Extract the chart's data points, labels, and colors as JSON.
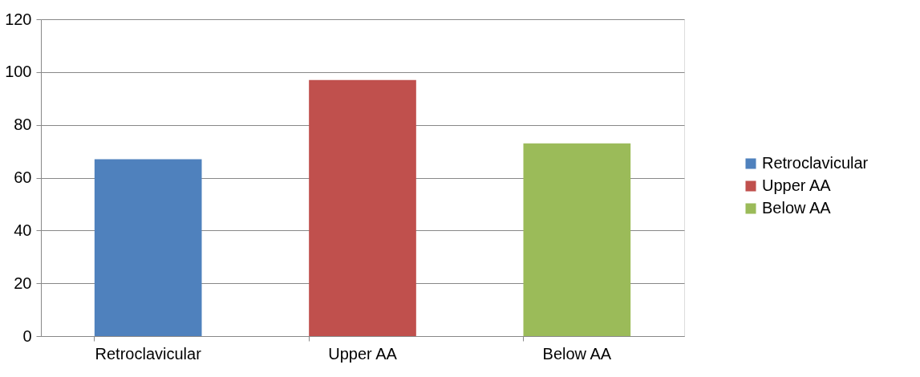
{
  "chart_data": {
    "type": "bar",
    "stacked": true,
    "categories": [
      "Retroclavicular",
      "Upper AA",
      "Below AA"
    ],
    "series": [
      {
        "name": "Retroclavicular",
        "color": "#4f81bd",
        "values": [
          67,
          null,
          null
        ]
      },
      {
        "name": "Upper AA",
        "color": "#c0504d",
        "values": [
          null,
          97,
          null
        ]
      },
      {
        "name": "Below AA",
        "color": "#9bbb59",
        "values": [
          null,
          null,
          73
        ]
      }
    ],
    "ylim": [
      0,
      120
    ],
    "yticks": [
      0,
      20,
      40,
      60,
      80,
      100,
      120
    ],
    "grid": "y",
    "legend": "right"
  }
}
